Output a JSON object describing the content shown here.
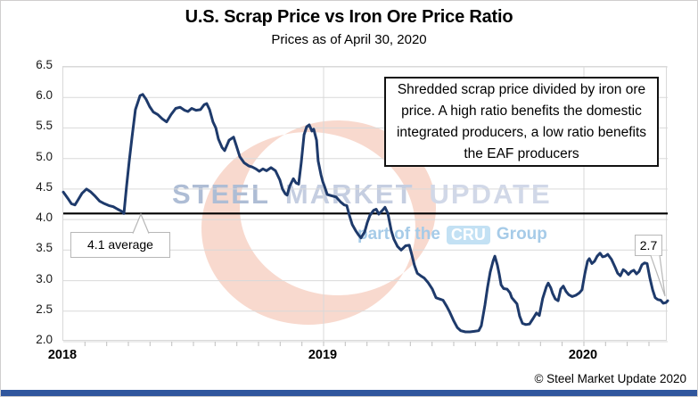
{
  "header": {
    "title": "U.S. Scrap Price vs Iron Ore Price Ratio",
    "subtitle": "Prices as of April 30, 2020"
  },
  "plot": {
    "annotation": "Shredded scrap price divided by iron ore price. A high ratio benefits the domestic integrated producers, a low ratio benefits the EAF producers",
    "average_callout": "4.1 average",
    "last_value_callout": "2.7"
  },
  "watermark": {
    "word1": "STEEL",
    "word2": "MARKET",
    "word3": "UPDATE",
    "tagline_prefix": "part of the",
    "tagline_badge": "CRU",
    "tagline_suffix": "Group"
  },
  "footer": {
    "copyright": "© Steel Market Update 2020"
  },
  "colors": {
    "series": "#1e3a6b",
    "average_line": "#000000",
    "grid": "#d9d9d9",
    "minor_tick": "#bfbfbf",
    "bottom_bar": "#30569d",
    "crescent": "#f0ab92"
  },
  "chart_data": {
    "type": "line",
    "title": "U.S. Scrap Price vs Iron Ore Price Ratio",
    "subtitle": "Prices as of April 30, 2020",
    "x_axis": {
      "ticks": [
        2018,
        2019,
        2020
      ],
      "labels": [
        "2018",
        "2019",
        "2020"
      ],
      "range": [
        2018.0,
        2020.322
      ]
    },
    "y_axis": {
      "ticks": [
        2.0,
        2.5,
        3.0,
        3.5,
        4.0,
        4.5,
        5.0,
        5.5,
        6.0,
        6.5
      ],
      "range": [
        2.0,
        6.5
      ]
    },
    "average_line_value": 4.1,
    "last_value": 2.7,
    "grid": true,
    "series": [
      {
        "name": "U.S. shredded scrap price divided by iron ore price",
        "color": "#1e3a6b",
        "points": [
          [
            2018.0,
            4.45
          ],
          [
            2018.017,
            4.35
          ],
          [
            2018.031,
            4.26
          ],
          [
            2018.045,
            4.24
          ],
          [
            2018.058,
            4.33
          ],
          [
            2018.072,
            4.43
          ],
          [
            2018.089,
            4.5
          ],
          [
            2018.106,
            4.45
          ],
          [
            2018.123,
            4.38
          ],
          [
            2018.14,
            4.3
          ],
          [
            2018.158,
            4.26
          ],
          [
            2018.175,
            4.23
          ],
          [
            2018.192,
            4.21
          ],
          [
            2018.209,
            4.17
          ],
          [
            2018.226,
            4.13
          ],
          [
            2018.233,
            4.1
          ],
          [
            2018.243,
            4.55
          ],
          [
            2018.253,
            4.95
          ],
          [
            2018.264,
            5.35
          ],
          [
            2018.277,
            5.8
          ],
          [
            2018.295,
            6.03
          ],
          [
            2018.305,
            6.05
          ],
          [
            2018.318,
            5.97
          ],
          [
            2018.332,
            5.85
          ],
          [
            2018.346,
            5.76
          ],
          [
            2018.363,
            5.72
          ],
          [
            2018.38,
            5.65
          ],
          [
            2018.397,
            5.6
          ],
          [
            2018.414,
            5.72
          ],
          [
            2018.432,
            5.82
          ],
          [
            2018.449,
            5.84
          ],
          [
            2018.466,
            5.79
          ],
          [
            2018.479,
            5.77
          ],
          [
            2018.493,
            5.82
          ],
          [
            2018.51,
            5.79
          ],
          [
            2018.527,
            5.8
          ],
          [
            2018.541,
            5.88
          ],
          [
            2018.551,
            5.9
          ],
          [
            2018.562,
            5.8
          ],
          [
            2018.575,
            5.6
          ],
          [
            2018.586,
            5.5
          ],
          [
            2018.596,
            5.32
          ],
          [
            2018.61,
            5.18
          ],
          [
            2018.62,
            5.13
          ],
          [
            2018.637,
            5.3
          ],
          [
            2018.654,
            5.35
          ],
          [
            2018.664,
            5.22
          ],
          [
            2018.678,
            5.03
          ],
          [
            2018.695,
            4.93
          ],
          [
            2018.712,
            4.88
          ],
          [
            2018.726,
            4.86
          ],
          [
            2018.74,
            4.83
          ],
          [
            2018.753,
            4.79
          ],
          [
            2018.767,
            4.83
          ],
          [
            2018.781,
            4.8
          ],
          [
            2018.798,
            4.85
          ],
          [
            2018.815,
            4.8
          ],
          [
            2018.832,
            4.65
          ],
          [
            2018.842,
            4.5
          ],
          [
            2018.853,
            4.42
          ],
          [
            2018.86,
            4.4
          ],
          [
            2018.87,
            4.55
          ],
          [
            2018.884,
            4.67
          ],
          [
            2018.894,
            4.6
          ],
          [
            2018.904,
            4.58
          ],
          [
            2018.914,
            4.93
          ],
          [
            2018.925,
            5.39
          ],
          [
            2018.935,
            5.52
          ],
          [
            2018.945,
            5.55
          ],
          [
            2018.955,
            5.45
          ],
          [
            2018.962,
            5.48
          ],
          [
            2018.973,
            5.3
          ],
          [
            2018.979,
            4.96
          ],
          [
            2018.99,
            4.73
          ],
          [
            2018.997,
            4.62
          ],
          [
            2019.003,
            4.55
          ],
          [
            2019.014,
            4.41
          ],
          [
            2019.031,
            4.39
          ],
          [
            2019.048,
            4.37
          ],
          [
            2019.065,
            4.29
          ],
          [
            2019.079,
            4.24
          ],
          [
            2019.089,
            4.23
          ],
          [
            2019.099,
            4.07
          ],
          [
            2019.11,
            3.92
          ],
          [
            2019.123,
            3.82
          ],
          [
            2019.134,
            3.75
          ],
          [
            2019.144,
            3.7
          ],
          [
            2019.158,
            3.8
          ],
          [
            2019.168,
            3.95
          ],
          [
            2019.178,
            4.07
          ],
          [
            2019.192,
            4.15
          ],
          [
            2019.202,
            4.17
          ],
          [
            2019.212,
            4.09
          ],
          [
            2019.226,
            4.15
          ],
          [
            2019.236,
            4.2
          ],
          [
            2019.247,
            4.1
          ],
          [
            2019.26,
            3.82
          ],
          [
            2019.27,
            3.68
          ],
          [
            2019.284,
            3.56
          ],
          [
            2019.298,
            3.5
          ],
          [
            2019.315,
            3.57
          ],
          [
            2019.329,
            3.58
          ],
          [
            2019.339,
            3.42
          ],
          [
            2019.349,
            3.25
          ],
          [
            2019.36,
            3.12
          ],
          [
            2019.373,
            3.08
          ],
          [
            2019.387,
            3.04
          ],
          [
            2019.401,
            2.97
          ],
          [
            2019.418,
            2.86
          ],
          [
            2019.432,
            2.72
          ],
          [
            2019.445,
            2.7
          ],
          [
            2019.459,
            2.68
          ],
          [
            2019.473,
            2.58
          ],
          [
            2019.483,
            2.5
          ],
          [
            2019.5,
            2.34
          ],
          [
            2019.514,
            2.23
          ],
          [
            2019.527,
            2.18
          ],
          [
            2019.545,
            2.16
          ],
          [
            2019.562,
            2.16
          ],
          [
            2019.579,
            2.17
          ],
          [
            2019.596,
            2.18
          ],
          [
            2019.606,
            2.26
          ],
          [
            2019.62,
            2.6
          ],
          [
            2019.63,
            2.89
          ],
          [
            2019.64,
            3.14
          ],
          [
            2019.651,
            3.32
          ],
          [
            2019.658,
            3.4
          ],
          [
            2019.668,
            3.25
          ],
          [
            2019.675,
            3.1
          ],
          [
            2019.682,
            2.93
          ],
          [
            2019.692,
            2.87
          ],
          [
            2019.705,
            2.86
          ],
          [
            2019.716,
            2.8
          ],
          [
            2019.723,
            2.72
          ],
          [
            2019.733,
            2.67
          ],
          [
            2019.743,
            2.62
          ],
          [
            2019.753,
            2.42
          ],
          [
            2019.764,
            2.3
          ],
          [
            2019.777,
            2.28
          ],
          [
            2019.791,
            2.29
          ],
          [
            2019.805,
            2.38
          ],
          [
            2019.818,
            2.47
          ],
          [
            2019.829,
            2.43
          ],
          [
            2019.842,
            2.71
          ],
          [
            2019.856,
            2.9
          ],
          [
            2019.863,
            2.96
          ],
          [
            2019.873,
            2.88
          ],
          [
            2019.88,
            2.79
          ],
          [
            2019.89,
            2.7
          ],
          [
            2019.901,
            2.67
          ],
          [
            2019.911,
            2.86
          ],
          [
            2019.921,
            2.91
          ],
          [
            2019.932,
            2.82
          ],
          [
            2019.942,
            2.77
          ],
          [
            2019.955,
            2.74
          ],
          [
            2019.969,
            2.76
          ],
          [
            2019.983,
            2.8
          ],
          [
            2019.993,
            2.85
          ],
          [
            2020.003,
            3.1
          ],
          [
            2020.014,
            3.32
          ],
          [
            2020.021,
            3.36
          ],
          [
            2020.031,
            3.28
          ],
          [
            2020.041,
            3.32
          ],
          [
            2020.051,
            3.4
          ],
          [
            2020.062,
            3.45
          ],
          [
            2020.072,
            3.39
          ],
          [
            2020.082,
            3.4
          ],
          [
            2020.092,
            3.43
          ],
          [
            2020.106,
            3.35
          ],
          [
            2020.12,
            3.22
          ],
          [
            2020.13,
            3.12
          ],
          [
            2020.14,
            3.08
          ],
          [
            2020.151,
            3.18
          ],
          [
            2020.161,
            3.15
          ],
          [
            2020.171,
            3.1
          ],
          [
            2020.182,
            3.15
          ],
          [
            2020.192,
            3.17
          ],
          [
            2020.202,
            3.11
          ],
          [
            2020.212,
            3.15
          ],
          [
            2020.223,
            3.26
          ],
          [
            2020.233,
            3.29
          ],
          [
            2020.243,
            3.28
          ],
          [
            2020.253,
            3.05
          ],
          [
            2020.264,
            2.85
          ],
          [
            2020.274,
            2.72
          ],
          [
            2020.284,
            2.69
          ],
          [
            2020.295,
            2.68
          ],
          [
            2020.305,
            2.63
          ],
          [
            2020.315,
            2.64
          ],
          [
            2020.322,
            2.67
          ]
        ]
      }
    ]
  }
}
